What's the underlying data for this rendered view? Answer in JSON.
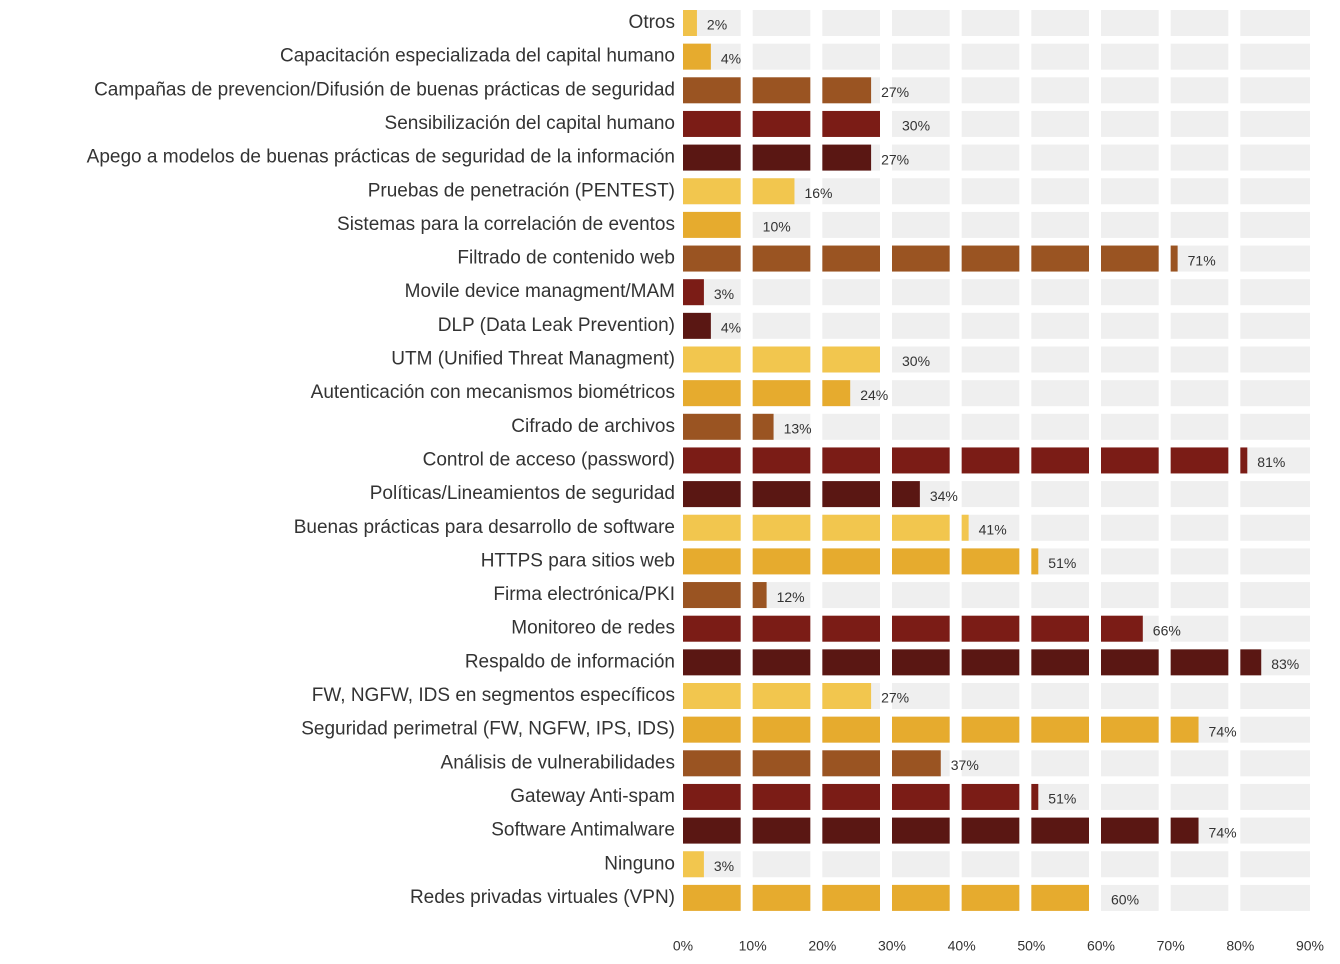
{
  "chart_data": {
    "type": "bar",
    "orientation": "horizontal",
    "segmented": true,
    "categories": [
      "Otros",
      "Capacitación especializada del capital humano",
      "Campañas de prevencion/Difusión de buenas prácticas de seguridad",
      "Sensibilización del capital humano",
      "Apego a modelos de buenas prácticas de seguridad de la información",
      "Pruebas de penetración (PENTEST)",
      "Sistemas para la correlación de eventos",
      "Filtrado de contenido web",
      "Movile device managment/MAM",
      "DLP (Data Leak Prevention)",
      "UTM (Unified Threat Managment)",
      "Autenticación con mecanismos biométricos",
      "Cifrado de archivos",
      "Control de acceso (password)",
      "Políticas/Lineamientos de seguridad",
      "Buenas prácticas para desarrollo de software",
      "HTTPS para sitios web",
      "Firma electrónica/PKI",
      "Monitoreo de redes",
      "Respaldo de información",
      "FW, NGFW, IDS en segmentos específicos",
      "Seguridad perimetral (FW, NGFW, IPS, IDS)",
      "Análisis de vulnerabilidades",
      "Gateway Anti-spam",
      "Software Antimalware",
      "Ninguno",
      "Redes privadas virtuales (VPN)"
    ],
    "values": [
      2,
      4,
      27,
      30,
      27,
      16,
      10,
      71,
      3,
      4,
      30,
      24,
      13,
      81,
      34,
      41,
      51,
      12,
      66,
      83,
      27,
      74,
      37,
      51,
      74,
      3,
      60
    ],
    "value_labels": [
      "2%",
      "4%",
      "27%",
      "30%",
      "27%",
      "16%",
      "10%",
      "71%",
      "3%",
      "4%",
      "30%",
      "24%",
      "13%",
      "81%",
      "34%",
      "41%",
      "51%",
      "12%",
      "66%",
      "83%",
      "27%",
      "74%",
      "37%",
      "51%",
      "74%",
      "3%",
      "60%"
    ],
    "colors": [
      "#f0c24a",
      "#e6ab2e",
      "#9a5422",
      "#7b1c16",
      "#5a1713",
      "#f2c64e",
      "#e6ab2e",
      "#9a5422",
      "#7b1c16",
      "#5a1713",
      "#f2c64e",
      "#e6ab2e",
      "#9a5422",
      "#7b1c16",
      "#5a1713",
      "#f2c64e",
      "#e6ab2e",
      "#9a5422",
      "#7b1c16",
      "#5a1713",
      "#f2c64e",
      "#e6ab2e",
      "#9a5422",
      "#7b1c16",
      "#5a1713",
      "#f2c64e",
      "#e6ab2e"
    ],
    "xlim": [
      0,
      90
    ],
    "xticks": [
      {
        "value": 0,
        "label": "0%"
      },
      {
        "value": 10,
        "label": "10%"
      },
      {
        "value": 20,
        "label": "20%"
      },
      {
        "value": 30,
        "label": "30%"
      },
      {
        "value": 40,
        "label": "40%"
      },
      {
        "value": 50,
        "label": "50%"
      },
      {
        "value": 60,
        "label": "60%"
      },
      {
        "value": 70,
        "label": "70%"
      },
      {
        "value": 80,
        "label": "80%"
      },
      {
        "value": 90,
        "label": "90%"
      }
    ],
    "segment": 10
  }
}
